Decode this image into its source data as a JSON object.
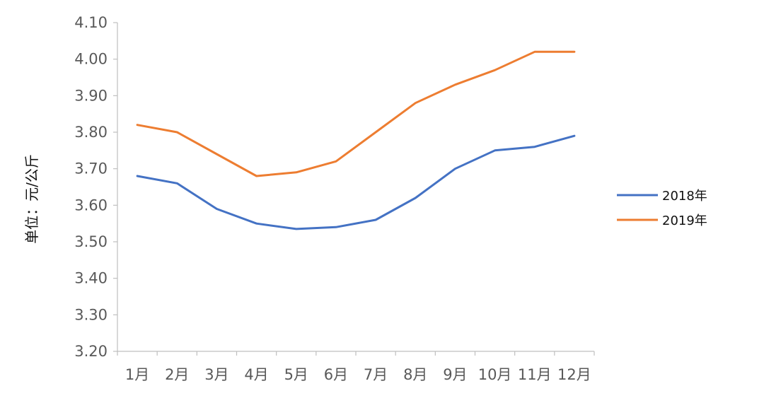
{
  "chart_data": {
    "type": "line",
    "title": "",
    "xlabel": "",
    "ylabel": "单位：元/公斤",
    "categories": [
      "1月",
      "2月",
      "3月",
      "4月",
      "5月",
      "6月",
      "7月",
      "8月",
      "9月",
      "10月",
      "11月",
      "12月"
    ],
    "ylim": [
      3.2,
      4.1
    ],
    "yticks": [
      "3.20",
      "3.30",
      "3.40",
      "3.50",
      "3.60",
      "3.70",
      "3.80",
      "3.90",
      "4.00",
      "4.10"
    ],
    "grid": false,
    "legend_position": "right",
    "series": [
      {
        "name": "2018年",
        "color": "#4472C4",
        "values": [
          3.68,
          3.66,
          3.59,
          3.55,
          3.535,
          3.54,
          3.56,
          3.62,
          3.7,
          3.75,
          3.76,
          3.79
        ]
      },
      {
        "name": "2019年",
        "color": "#ED7D31",
        "values": [
          3.82,
          3.8,
          3.74,
          3.68,
          3.69,
          3.72,
          3.8,
          3.88,
          3.93,
          3.97,
          4.02,
          4.02
        ]
      }
    ]
  }
}
